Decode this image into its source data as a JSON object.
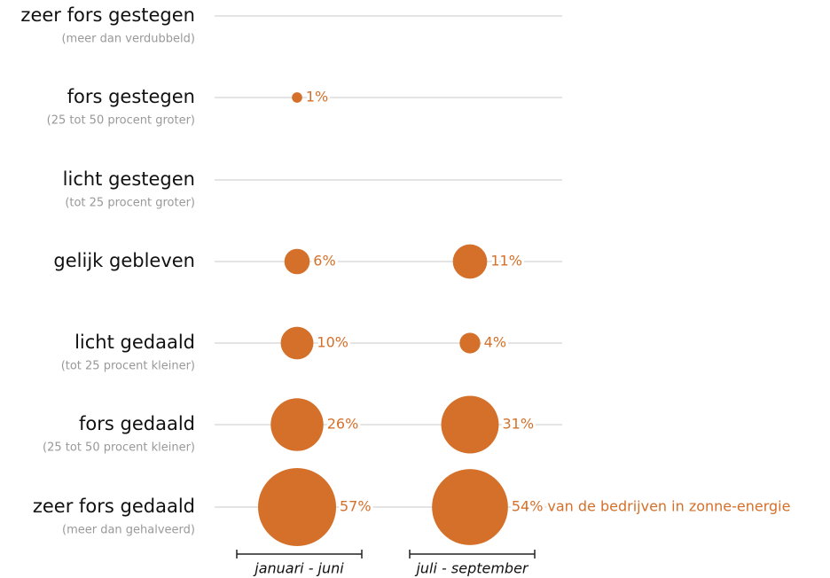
{
  "chart_data": {
    "type": "bubble",
    "categories": [
      "zeer fors gestegen",
      "fors gestegen",
      "licht gestegen",
      "gelijk gebleven",
      "licht gedaald",
      "fors gedaald",
      "zeer fors gedaald"
    ],
    "sublabels": [
      "(meer dan verdubbeld)",
      "(25 tot 50 procent groter)",
      "(tot 25 procent groter)",
      null,
      "(tot 25 procent kleiner)",
      "(25 tot 50 procent kleiner)",
      "(meer dan gehalveerd)"
    ],
    "series": [
      {
        "name": "januari - juni",
        "color": "#d4702a",
        "values": [
          null,
          1,
          null,
          6,
          10,
          26,
          57
        ],
        "value_labels": [
          null,
          "1%",
          null,
          "6%",
          "10%",
          "26%",
          "57%"
        ]
      },
      {
        "name": "juli - september",
        "color": "#d4702a",
        "values": [
          null,
          null,
          null,
          11,
          4,
          31,
          54
        ],
        "value_labels": [
          null,
          null,
          null,
          "11%",
          "4%",
          "31%",
          "54%"
        ]
      }
    ],
    "annotation": "van de bedrijven in zonne-energie"
  }
}
